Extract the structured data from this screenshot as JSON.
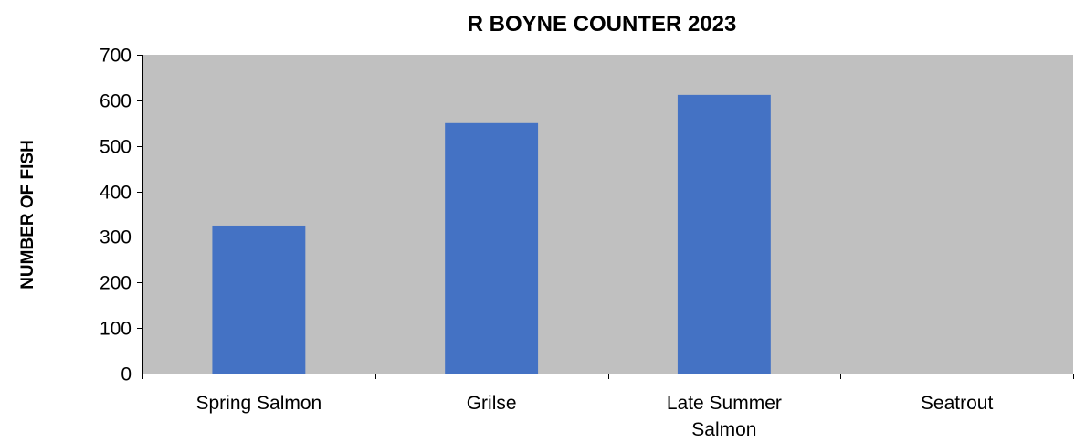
{
  "chart_data": {
    "type": "bar",
    "title": "R BOYNE COUNTER 2023",
    "xlabel": "",
    "ylabel": "NUMBER OF FISH",
    "categories": [
      "Spring Salmon",
      "Grilse",
      "Late Summer Salmon",
      "Seatrout"
    ],
    "category_lines": [
      [
        "Spring Salmon"
      ],
      [
        "Grilse"
      ],
      [
        "Late Summer",
        "Salmon"
      ],
      [
        "Seatrout"
      ]
    ],
    "values": [
      325,
      550,
      612,
      0
    ],
    "ylim": [
      0,
      700
    ],
    "yticks": [
      0,
      100,
      200,
      300,
      400,
      500,
      600,
      700
    ],
    "grid": false,
    "legend": "none"
  },
  "colors": {
    "bar": "#4472C4",
    "plot_background": "#C0C0C0",
    "axis": "#000000"
  }
}
